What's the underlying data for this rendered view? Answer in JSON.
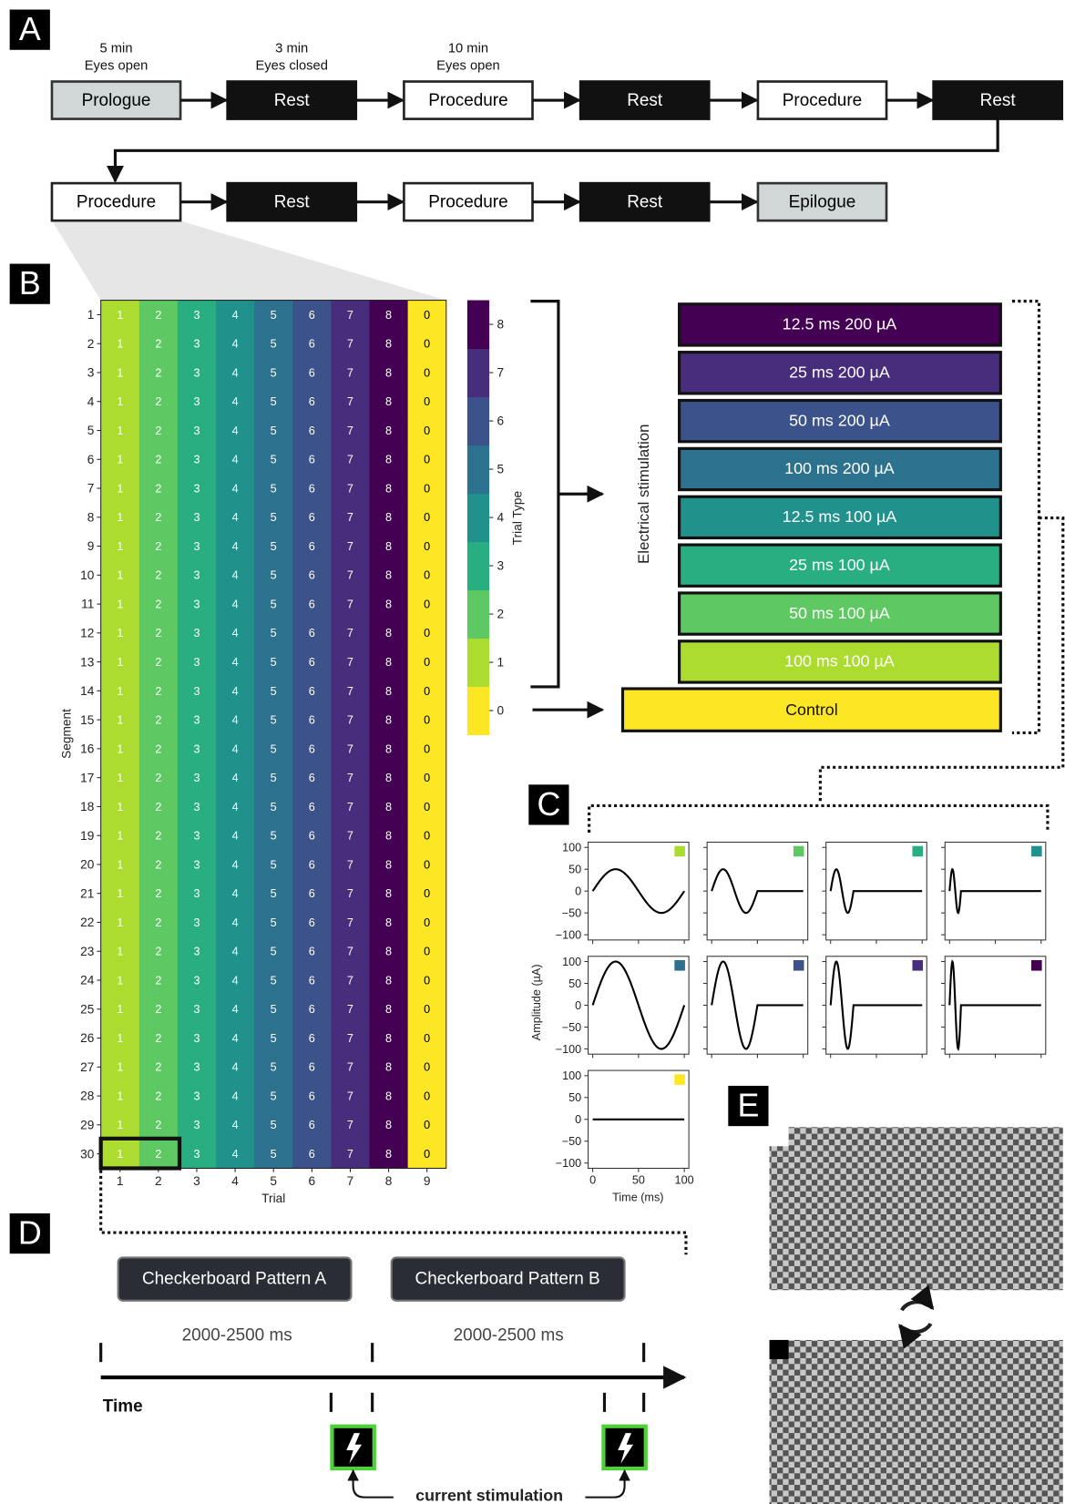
{
  "panel_labels": [
    "A",
    "B",
    "C",
    "D",
    "E"
  ],
  "timeline": {
    "styles": {
      "gray": {
        "fill": "#d1d6d6",
        "stroke": "#333",
        "text": "#000"
      },
      "black": {
        "fill": "#111111",
        "stroke": "#111",
        "text": "#fff"
      },
      "white": {
        "fill": "#ffffff",
        "stroke": "#222",
        "text": "#000"
      }
    },
    "rows": [
      [
        {
          "label": "Prologue",
          "style": "gray",
          "duration": "5 min",
          "state": "Eyes open"
        },
        {
          "label": "Rest",
          "style": "black",
          "duration": "3 min",
          "state": "Eyes closed"
        },
        {
          "label": "Procedure",
          "style": "white",
          "duration": "10 min",
          "state": "Eyes open"
        },
        {
          "label": "Rest",
          "style": "black"
        },
        {
          "label": "Procedure",
          "style": "white"
        },
        {
          "label": "Rest",
          "style": "black"
        }
      ],
      [
        {
          "label": "Procedure",
          "style": "white"
        },
        {
          "label": "Rest",
          "style": "black"
        },
        {
          "label": "Procedure",
          "style": "white"
        },
        {
          "label": "Rest",
          "style": "black"
        },
        {
          "label": "Epilogue",
          "style": "gray"
        }
      ]
    ]
  },
  "heatmap": {
    "type": "heatmap",
    "x_label": "Trial",
    "y_label": "Segment",
    "x": [
      1,
      2,
      3,
      4,
      5,
      6,
      7,
      8,
      9
    ],
    "y": [
      1,
      2,
      3,
      4,
      5,
      6,
      7,
      8,
      9,
      10,
      11,
      12,
      13,
      14,
      15,
      16,
      17,
      18,
      19,
      20,
      21,
      22,
      23,
      24,
      25,
      26,
      27,
      28,
      29,
      30
    ],
    "values": [
      [
        1,
        2,
        3,
        4,
        5,
        6,
        7,
        8,
        0
      ],
      [
        1,
        2,
        3,
        4,
        5,
        6,
        7,
        8,
        0
      ],
      [
        1,
        2,
        3,
        4,
        5,
        6,
        7,
        8,
        0
      ],
      [
        1,
        2,
        3,
        4,
        5,
        6,
        7,
        8,
        0
      ],
      [
        1,
        2,
        3,
        4,
        5,
        6,
        7,
        8,
        0
      ],
      [
        1,
        2,
        3,
        4,
        5,
        6,
        7,
        8,
        0
      ],
      [
        1,
        2,
        3,
        4,
        5,
        6,
        7,
        8,
        0
      ],
      [
        1,
        2,
        3,
        4,
        5,
        6,
        7,
        8,
        0
      ],
      [
        1,
        2,
        3,
        4,
        5,
        6,
        7,
        8,
        0
      ],
      [
        1,
        2,
        3,
        4,
        5,
        6,
        7,
        8,
        0
      ],
      [
        1,
        2,
        3,
        4,
        5,
        6,
        7,
        8,
        0
      ],
      [
        1,
        2,
        3,
        4,
        5,
        6,
        7,
        8,
        0
      ],
      [
        1,
        2,
        3,
        4,
        5,
        6,
        7,
        8,
        0
      ],
      [
        1,
        2,
        3,
        4,
        5,
        6,
        7,
        8,
        0
      ],
      [
        1,
        2,
        3,
        4,
        5,
        6,
        7,
        8,
        0
      ],
      [
        1,
        2,
        3,
        4,
        5,
        6,
        7,
        8,
        0
      ],
      [
        1,
        2,
        3,
        4,
        5,
        6,
        7,
        8,
        0
      ],
      [
        1,
        2,
        3,
        4,
        5,
        6,
        7,
        8,
        0
      ],
      [
        1,
        2,
        3,
        4,
        5,
        6,
        7,
        8,
        0
      ],
      [
        1,
        2,
        3,
        4,
        5,
        6,
        7,
        8,
        0
      ],
      [
        1,
        2,
        3,
        4,
        5,
        6,
        7,
        8,
        0
      ],
      [
        1,
        2,
        3,
        4,
        5,
        6,
        7,
        8,
        0
      ],
      [
        1,
        2,
        3,
        4,
        5,
        6,
        7,
        8,
        0
      ],
      [
        1,
        2,
        3,
        4,
        5,
        6,
        7,
        8,
        0
      ],
      [
        1,
        2,
        3,
        4,
        5,
        6,
        7,
        8,
        0
      ],
      [
        1,
        2,
        3,
        4,
        5,
        6,
        7,
        8,
        0
      ],
      [
        1,
        2,
        3,
        4,
        5,
        6,
        7,
        8,
        0
      ],
      [
        1,
        2,
        3,
        4,
        5,
        6,
        7,
        8,
        0
      ],
      [
        1,
        2,
        3,
        4,
        5,
        6,
        7,
        8,
        0
      ],
      [
        1,
        2,
        3,
        4,
        5,
        6,
        7,
        8,
        0
      ]
    ],
    "colorbar": {
      "label": "Trial Type",
      "ticks": [
        0,
        1,
        2,
        3,
        4,
        5,
        6,
        7,
        8
      ],
      "colors": [
        "#fde725",
        "#addc30",
        "#5ec962",
        "#28ae80",
        "#21918c",
        "#2c728e",
        "#3b528b",
        "#472d7b",
        "#440154"
      ]
    }
  },
  "conditions": {
    "group_label": "Electrical stimulation",
    "items": [
      {
        "label": "12.5 ms 200 µA",
        "color": "#440154"
      },
      {
        "label": "25 ms 200 µA",
        "color": "#472d7b"
      },
      {
        "label": "50 ms 200 µA",
        "color": "#3b528b"
      },
      {
        "label": "100 ms 200 µA",
        "color": "#2c728e"
      },
      {
        "label": "12.5 ms 100 µA",
        "color": "#21918c"
      },
      {
        "label": "25 ms 100 µA",
        "color": "#28ae80"
      },
      {
        "label": "50 ms 100 µA",
        "color": "#5ec962"
      },
      {
        "label": "100 ms 100 µA",
        "color": "#addc30"
      }
    ],
    "control": {
      "label": "Control",
      "color": "#fde725"
    }
  },
  "waveforms": {
    "type": "line",
    "y_label": "Amplitude (µA)",
    "x_label": "Time (ms)",
    "xlim": [
      -5,
      105
    ],
    "ylim": [
      -112,
      112
    ],
    "xticks": [
      0,
      50,
      100
    ],
    "yticks": [
      100,
      50,
      0,
      {
        "value": -50,
        "label": "−50"
      },
      {
        "value": -100,
        "label": "−100"
      }
    ],
    "panels": [
      {
        "color": "#addc30",
        "duration": 100,
        "amplitude": 50
      },
      {
        "color": "#5ec962",
        "duration": 50,
        "amplitude": 50
      },
      {
        "color": "#28ae80",
        "duration": 25,
        "amplitude": 50
      },
      {
        "color": "#21918c",
        "duration": 12.5,
        "amplitude": 50
      },
      {
        "color": "#2c728e",
        "duration": 100,
        "amplitude": 100
      },
      {
        "color": "#3b528b",
        "duration": 50,
        "amplitude": 100
      },
      {
        "color": "#472d7b",
        "duration": 25,
        "amplitude": 100
      },
      {
        "color": "#440154",
        "duration": 12.5,
        "amplitude": 100
      },
      {
        "color": "#fde725",
        "duration": 100,
        "amplitude": 0
      }
    ]
  },
  "sequence": {
    "patterns": [
      "Checkerboard Pattern A",
      "Checkerboard Pattern B"
    ],
    "durations": [
      "2000-2500 ms",
      "2000-2500 ms"
    ],
    "time_label": "Time",
    "stim_label": "current stimulation"
  }
}
